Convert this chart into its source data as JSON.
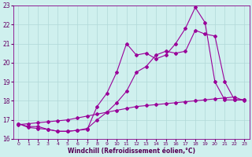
{
  "xlabel": "Windchill (Refroidissement éolien,°C)",
  "bg_color": "#cff0ee",
  "line_color": "#990099",
  "xlim": [
    -0.5,
    23.5
  ],
  "ylim": [
    16.0,
    23.0
  ],
  "xticks": [
    0,
    1,
    2,
    3,
    4,
    5,
    6,
    7,
    8,
    9,
    10,
    11,
    12,
    13,
    14,
    15,
    16,
    17,
    18,
    19,
    20,
    21,
    22,
    23
  ],
  "yticks": [
    16,
    17,
    18,
    19,
    20,
    21,
    22,
    23
  ],
  "line1_x": [
    0,
    1,
    2,
    3,
    4,
    5,
    6,
    7,
    8,
    9,
    10,
    11,
    12,
    13,
    14,
    15,
    16,
    17,
    18,
    19,
    20,
    21,
    22,
    23
  ],
  "line1_y": [
    16.8,
    16.6,
    16.55,
    16.5,
    16.4,
    16.4,
    16.45,
    16.5,
    17.7,
    18.4,
    19.5,
    21.0,
    20.4,
    20.5,
    20.2,
    20.4,
    21.0,
    21.8,
    22.9,
    22.1,
    19.0,
    18.05,
    18.05,
    18.05
  ],
  "line2_x": [
    0,
    1,
    2,
    3,
    4,
    5,
    6,
    7,
    8,
    9,
    10,
    11,
    12,
    13,
    14,
    15,
    16,
    17,
    18,
    19,
    20,
    21,
    22,
    23
  ],
  "line2_y": [
    16.8,
    16.65,
    16.65,
    16.5,
    16.4,
    16.4,
    16.45,
    16.55,
    17.0,
    17.4,
    17.9,
    18.5,
    19.5,
    19.8,
    20.4,
    20.6,
    20.5,
    20.6,
    21.7,
    21.5,
    21.4,
    19.0,
    18.05,
    18.05
  ],
  "line3_x": [
    0,
    1,
    2,
    3,
    4,
    5,
    6,
    7,
    8,
    9,
    10,
    11,
    12,
    13,
    14,
    15,
    16,
    17,
    18,
    19,
    20,
    21,
    22,
    23
  ],
  "line3_y": [
    16.75,
    16.8,
    16.85,
    16.9,
    16.95,
    17.0,
    17.1,
    17.2,
    17.3,
    17.4,
    17.5,
    17.6,
    17.7,
    17.75,
    17.8,
    17.85,
    17.9,
    17.95,
    18.0,
    18.05,
    18.1,
    18.15,
    18.2,
    18.0
  ],
  "marker": "D",
  "markersize": 2,
  "grid_color": "#b0d8d8",
  "linewidth": 0.8
}
